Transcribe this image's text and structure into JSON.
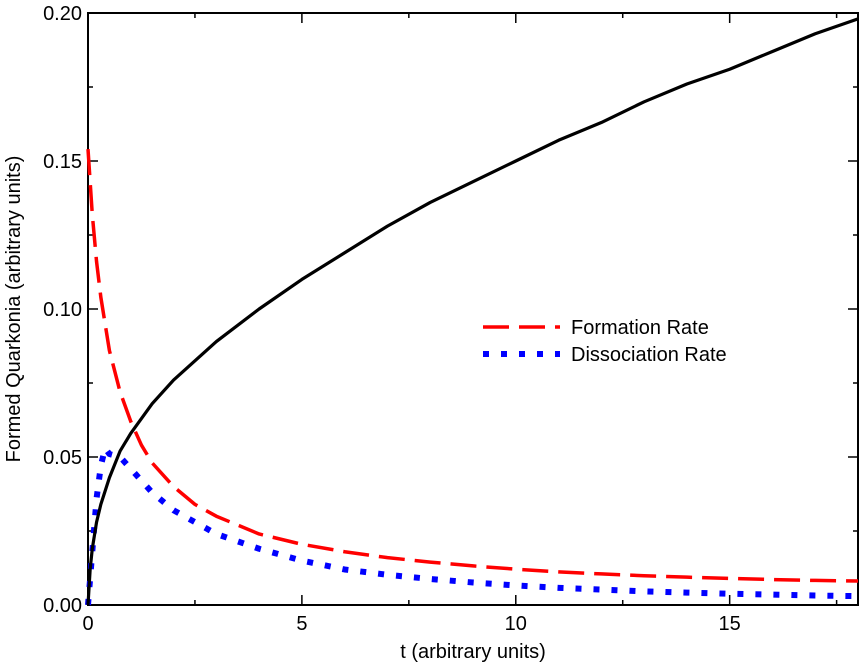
{
  "chart_data": {
    "type": "line",
    "title": "",
    "xlabel": "t (arbitrary units)",
    "ylabel": "Formed Quarkonia (arbitrary units)",
    "xlim": [
      0,
      18
    ],
    "ylim": [
      0,
      0.2
    ],
    "xticks": [
      0,
      5,
      10,
      15
    ],
    "xtick_labels": [
      "0",
      "5",
      "10",
      "15"
    ],
    "yticks": [
      0,
      0.05,
      0.1,
      0.15,
      0.2
    ],
    "ytick_labels": [
      "0.00",
      "0.05",
      "0.10",
      "0.15",
      "0.20"
    ],
    "legend_position": "center-right",
    "series": [
      {
        "name": "Formed Quarkonia",
        "in_legend": false,
        "color": "#000000",
        "style": "solid",
        "x": [
          0,
          0.05,
          0.1,
          0.2,
          0.3,
          0.5,
          0.75,
          1,
          1.5,
          2,
          3,
          4,
          5,
          6,
          7,
          8,
          9,
          10,
          11,
          12,
          13,
          14,
          15,
          16,
          17,
          18
        ],
        "y": [
          0,
          0.012,
          0.019,
          0.028,
          0.034,
          0.043,
          0.052,
          0.058,
          0.068,
          0.076,
          0.089,
          0.1,
          0.11,
          0.119,
          0.128,
          0.136,
          0.143,
          0.15,
          0.157,
          0.163,
          0.17,
          0.176,
          0.181,
          0.187,
          0.193,
          0.198
        ]
      },
      {
        "name": "Formation Rate",
        "in_legend": true,
        "color": "#ff0000",
        "style": "dashed",
        "x": [
          0,
          0.1,
          0.2,
          0.3,
          0.5,
          0.75,
          1,
          1.25,
          1.5,
          2,
          2.5,
          3,
          4,
          5,
          6,
          7,
          8,
          9,
          10,
          11,
          12,
          13,
          14,
          15,
          16,
          17,
          18
        ],
        "y": [
          0.154,
          0.132,
          0.116,
          0.104,
          0.086,
          0.072,
          0.062,
          0.054,
          0.048,
          0.04,
          0.034,
          0.03,
          0.024,
          0.0205,
          0.018,
          0.016,
          0.0145,
          0.0132,
          0.0121,
          0.0112,
          0.0105,
          0.0099,
          0.0094,
          0.009,
          0.0086,
          0.0083,
          0.0081
        ]
      },
      {
        "name": "Dissociation Rate",
        "in_legend": true,
        "color": "#0000ff",
        "style": "dotted",
        "x": [
          0,
          0.05,
          0.1,
          0.15,
          0.2,
          0.3,
          0.4,
          0.5,
          0.75,
          1,
          1.5,
          2,
          3,
          4,
          5,
          6,
          7,
          8,
          9,
          10,
          11,
          12,
          13,
          14,
          15,
          16,
          17,
          18
        ],
        "y": [
          0,
          0.009,
          0.018,
          0.027,
          0.036,
          0.047,
          0.053,
          0.051,
          0.05,
          0.046,
          0.038,
          0.032,
          0.024,
          0.019,
          0.015,
          0.012,
          0.0102,
          0.0088,
          0.0076,
          0.0066,
          0.0058,
          0.0052,
          0.0046,
          0.0042,
          0.0038,
          0.0035,
          0.0032,
          0.003
        ]
      }
    ]
  }
}
